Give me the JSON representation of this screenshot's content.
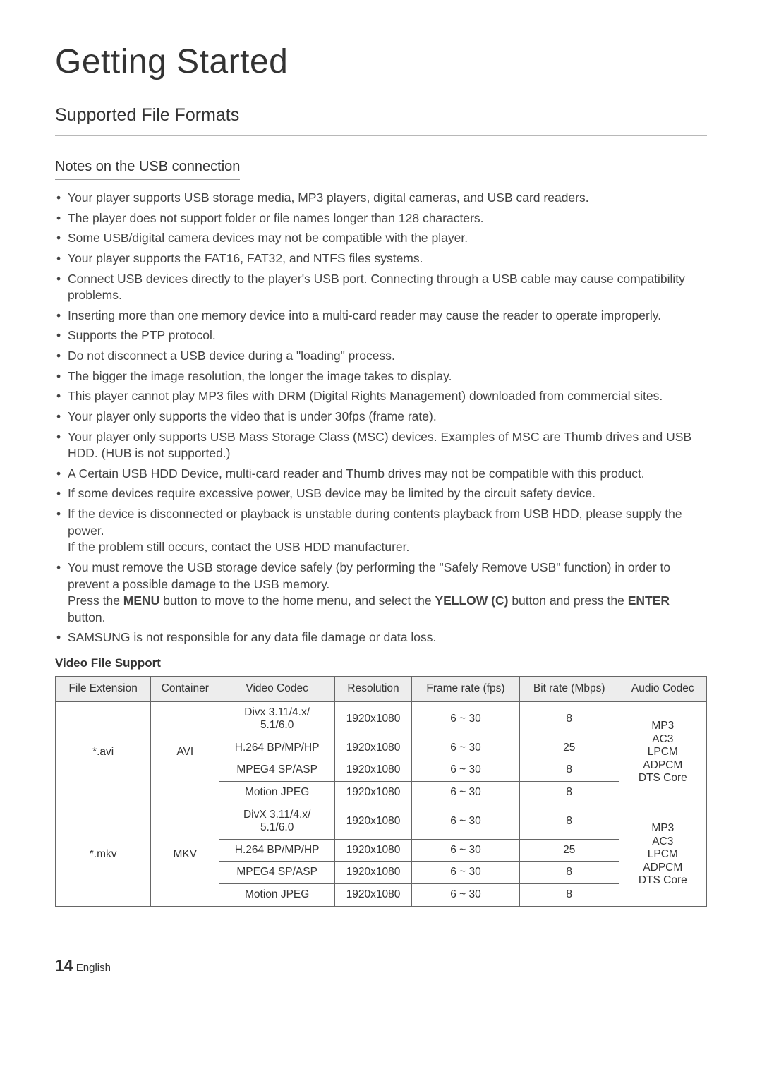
{
  "page": {
    "title": "Getting Started",
    "section": "Supported File Formats",
    "subsection": "Notes on the USB connection",
    "footer_page": "14",
    "footer_lang": "English"
  },
  "notes": [
    "Your player supports USB storage media, MP3 players, digital cameras, and USB card readers.",
    "The player does not support folder or file names longer than 128 characters.",
    "Some USB/digital camera devices may not be compatible with the player.",
    "Your player supports the FAT16, FAT32, and NTFS files systems.",
    "Connect USB devices directly to the player's USB port. Connecting through a USB cable may cause compatibility problems.",
    "Inserting more than one memory device into a multi-card reader may cause the reader to operate improperly.",
    "Supports the PTP protocol.",
    "Do not disconnect a USB device during a \"loading\" process.",
    "The bigger the image resolution, the longer the image takes to display.",
    "This player cannot play MP3 files with DRM (Digital Rights Management) downloaded from commercial sites.",
    "Your player only supports the video that is under 30fps (frame rate).",
    "Your player only supports USB Mass Storage Class (MSC) devices. Examples of MSC are Thumb drives and USB HDD. (HUB is not supported.)",
    "A Certain USB HDD Device, multi-card reader and Thumb drives may not be compatible with this product.",
    "If some devices require excessive power, USB device may be limited by the circuit safety device.",
    "If the device is disconnected or playback is unstable during contents playback from USB HDD, please supply the power.\nIf the problem still occurs, contact the USB HDD manufacturer.",
    "__HTML__You must remove the USB storage device safely (by performing the \"Safely Remove USB\" function) in order to prevent a possible damage to the USB memory.<br>Press the <span class=\"bold\">MENU</span> button to move to the home menu, and select the <span class=\"bold\">YELLOW (C)</span> button and press the <span class=\"bold\">ENTER</span> button.",
    "SAMSUNG is not responsible for any data file damage or data loss."
  ],
  "table": {
    "title": "Video File Support",
    "columns": [
      "File Extension",
      "Container",
      "Video Codec",
      "Resolution",
      "Frame rate (fps)",
      "Bit rate (Mbps)",
      "Audio Codec"
    ],
    "groups": [
      {
        "ext": "*.avi",
        "container": "AVI",
        "audio": "MP3\nAC3\nLPCM\nADPCM\nDTS Core",
        "rows": [
          {
            "codec": "Divx 3.11/4.x/\n5.1/6.0",
            "res": "1920x1080",
            "fps": "6 ~ 30",
            "br": "8"
          },
          {
            "codec": "H.264 BP/MP/HP",
            "res": "1920x1080",
            "fps": "6 ~ 30",
            "br": "25"
          },
          {
            "codec": "MPEG4 SP/ASP",
            "res": "1920x1080",
            "fps": "6 ~ 30",
            "br": "8"
          },
          {
            "codec": "Motion JPEG",
            "res": "1920x1080",
            "fps": "6 ~ 30",
            "br": "8"
          }
        ]
      },
      {
        "ext": "*.mkv",
        "container": "MKV",
        "audio": "MP3\nAC3\nLPCM\nADPCM\nDTS Core",
        "rows": [
          {
            "codec": "DivX 3.11/4.x/\n5.1/6.0",
            "res": "1920x1080",
            "fps": "6 ~ 30",
            "br": "8"
          },
          {
            "codec": "H.264 BP/MP/HP",
            "res": "1920x1080",
            "fps": "6 ~ 30",
            "br": "25"
          },
          {
            "codec": "MPEG4 SP/ASP",
            "res": "1920x1080",
            "fps": "6 ~ 30",
            "br": "8"
          },
          {
            "codec": "Motion JPEG",
            "res": "1920x1080",
            "fps": "6 ~ 30",
            "br": "8"
          }
        ]
      }
    ]
  }
}
